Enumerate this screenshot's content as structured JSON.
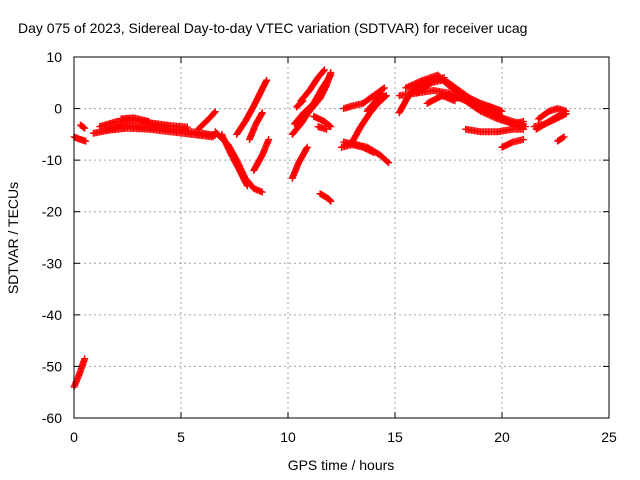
{
  "chart_data": {
    "type": "scatter",
    "title": "Day 075 of 2023, Sidereal Day-to-day VTEC variation (SDTVAR) for receiver ucag",
    "xlabel": "GPS time / hours",
    "ylabel": "SDTVAR / TECUs",
    "xlim": [
      0,
      25
    ],
    "ylim": [
      -60,
      10
    ],
    "xticks": [
      0,
      5,
      10,
      15,
      20,
      25
    ],
    "yticks": [
      -60,
      -50,
      -40,
      -30,
      -20,
      -10,
      0,
      10
    ],
    "xtick_labels": [
      "0",
      "5",
      "10",
      "15",
      "20",
      "25"
    ],
    "ytick_labels": [
      "-60",
      "-50",
      "-40",
      "-30",
      "-20",
      "-10",
      "0",
      "10"
    ],
    "grid": true,
    "marker": "+",
    "series": [
      {
        "name": "SDTVAR",
        "color": "#ff0000",
        "arcs": [
          [
            [
              0.0,
              -54
            ],
            [
              0.25,
              -51.5
            ],
            [
              0.5,
              -48.5
            ]
          ],
          [
            [
              0.0,
              -5.5
            ],
            [
              0.3,
              -6.0
            ],
            [
              0.55,
              -6.3
            ]
          ],
          [
            [
              0.3,
              -3.2
            ],
            [
              0.5,
              -3.8
            ]
          ],
          [
            [
              0.9,
              -4.8
            ],
            [
              1.6,
              -4.2
            ],
            [
              2.5,
              -3.8
            ],
            [
              3.5,
              -4.0
            ],
            [
              4.5,
              -4.5
            ],
            [
              5.5,
              -5.0
            ],
            [
              6.5,
              -5.5
            ]
          ],
          [
            [
              1.2,
              -3.5
            ],
            [
              2.0,
              -2.5
            ],
            [
              2.8,
              -2.3
            ],
            [
              3.6,
              -2.8
            ],
            [
              4.5,
              -3.3
            ],
            [
              5.3,
              -3.6
            ]
          ],
          [
            [
              1.5,
              -4.2
            ],
            [
              2.3,
              -3.2
            ],
            [
              3.0,
              -3.5
            ],
            [
              4.0,
              -3.8
            ],
            [
              5.0,
              -4.2
            ],
            [
              6.0,
              -4.8
            ],
            [
              6.6,
              -5.2
            ]
          ],
          [
            [
              2.2,
              -2.0
            ],
            [
              2.8,
              -1.8
            ],
            [
              3.5,
              -2.5
            ]
          ],
          [
            [
              5.8,
              -4.0
            ],
            [
              6.3,
              -2.0
            ],
            [
              6.6,
              -0.6
            ]
          ],
          [
            [
              6.6,
              -4.5
            ],
            [
              7.2,
              -7.0
            ],
            [
              7.6,
              -10.0
            ],
            [
              8.0,
              -13.5
            ],
            [
              8.4,
              -15.5
            ],
            [
              8.8,
              -16.2
            ]
          ],
          [
            [
              6.9,
              -5.0
            ],
            [
              7.3,
              -8.5
            ],
            [
              7.8,
              -12.5
            ],
            [
              8.1,
              -15.0
            ]
          ],
          [
            [
              7.6,
              -5.0
            ],
            [
              8.0,
              -2.5
            ],
            [
              8.4,
              0.5
            ],
            [
              8.7,
              3.0
            ],
            [
              9.0,
              5.5
            ]
          ],
          [
            [
              8.2,
              -6.0
            ],
            [
              8.5,
              -3.0
            ],
            [
              8.8,
              -0.8
            ]
          ],
          [
            [
              8.4,
              -12.0
            ],
            [
              8.8,
              -9.0
            ],
            [
              9.1,
              -6.0
            ]
          ],
          [
            [
              10.2,
              -13.5
            ],
            [
              10.5,
              -10.5
            ],
            [
              10.9,
              -7.5
            ]
          ],
          [
            [
              10.2,
              -5.0
            ],
            [
              10.6,
              -3.0
            ],
            [
              11.0,
              -0.5
            ],
            [
              11.5,
              2.0
            ],
            [
              11.8,
              4.5
            ],
            [
              12.0,
              7.0
            ]
          ],
          [
            [
              10.3,
              -3.0
            ],
            [
              10.7,
              -1.0
            ],
            [
              11.2,
              1.0
            ],
            [
              11.6,
              4.0
            ],
            [
              12.0,
              6.5
            ]
          ],
          [
            [
              10.4,
              0.3
            ],
            [
              10.7,
              1.5
            ]
          ],
          [
            [
              10.6,
              1.5
            ],
            [
              11.0,
              3.5
            ],
            [
              11.4,
              6.0
            ],
            [
              11.7,
              7.5
            ]
          ],
          [
            [
              11.2,
              -1.5
            ],
            [
              11.7,
              -2.5
            ],
            [
              12.0,
              -3.5
            ]
          ],
          [
            [
              11.4,
              -3.5
            ],
            [
              11.8,
              -4.0
            ]
          ],
          [
            [
              11.5,
              -16.5
            ],
            [
              11.9,
              -17.5
            ],
            [
              12.0,
              -18.0
            ]
          ],
          [
            [
              12.6,
              0.0
            ],
            [
              13.0,
              0.5
            ],
            [
              13.5,
              1.0
            ],
            [
              14.0,
              2.5
            ],
            [
              14.5,
              4.0
            ]
          ],
          [
            [
              12.6,
              -6.5
            ],
            [
              13.2,
              -7.0
            ],
            [
              13.7,
              -7.5
            ],
            [
              14.3,
              -9.0
            ],
            [
              14.7,
              -10.5
            ]
          ],
          [
            [
              12.5,
              -7.5
            ],
            [
              13.0,
              -7.0
            ],
            [
              13.5,
              -7.5
            ],
            [
              14.0,
              -8.5
            ]
          ],
          [
            [
              13.0,
              -6.5
            ],
            [
              13.4,
              -3.5
            ],
            [
              13.8,
              -1.0
            ],
            [
              14.2,
              1.0
            ],
            [
              14.6,
              2.5
            ]
          ],
          [
            [
              13.7,
              -0.5
            ],
            [
              14.0,
              1.0
            ],
            [
              14.4,
              3.0
            ]
          ],
          [
            [
              15.2,
              -0.8
            ],
            [
              15.5,
              1.5
            ],
            [
              15.8,
              3.5
            ],
            [
              16.2,
              4.5
            ],
            [
              16.8,
              5.5
            ],
            [
              17.3,
              6.0
            ]
          ],
          [
            [
              15.2,
              2.5
            ],
            [
              16.0,
              3.0
            ],
            [
              16.7,
              5.0
            ],
            [
              17.2,
              5.5
            ],
            [
              17.5,
              5.0
            ],
            [
              18.0,
              3.5
            ],
            [
              18.5,
              2.0
            ],
            [
              19.0,
              1.0
            ],
            [
              19.5,
              0.3
            ],
            [
              20.0,
              -0.5
            ]
          ],
          [
            [
              15.5,
              4.0
            ],
            [
              16.3,
              5.5
            ],
            [
              17.0,
              6.5
            ],
            [
              17.5,
              4.5
            ],
            [
              18.2,
              2.5
            ],
            [
              19.0,
              0.5
            ],
            [
              19.8,
              -1.5
            ],
            [
              20.5,
              -2.5
            ],
            [
              21.0,
              -3.0
            ]
          ],
          [
            [
              16.0,
              3.0
            ],
            [
              16.8,
              3.5
            ],
            [
              17.5,
              3.0
            ],
            [
              18.3,
              1.5
            ],
            [
              19.0,
              -0.5
            ],
            [
              19.8,
              -2.0
            ],
            [
              20.6,
              -3.0
            ],
            [
              21.1,
              -3.5
            ]
          ],
          [
            [
              16.5,
              1.0
            ],
            [
              17.2,
              2.5
            ],
            [
              17.8,
              1.5
            ]
          ],
          [
            [
              17.2,
              2.5
            ],
            [
              18.2,
              2.0
            ],
            [
              19.0,
              0.5
            ],
            [
              20.0,
              -1.5
            ]
          ],
          [
            [
              18.3,
              -4.0
            ],
            [
              19.0,
              -4.5
            ],
            [
              19.8,
              -4.5
            ],
            [
              20.5,
              -4.0
            ],
            [
              21.0,
              -4.0
            ]
          ],
          [
            [
              20.0,
              -7.5
            ],
            [
              20.5,
              -6.5
            ],
            [
              21.0,
              -6.0
            ]
          ],
          [
            [
              20.0,
              -2.0
            ],
            [
              20.5,
              -3.0
            ],
            [
              21.0,
              -2.5
            ]
          ],
          [
            [
              21.5,
              -3.5
            ],
            [
              22.0,
              -3.0
            ],
            [
              22.5,
              -2.0
            ],
            [
              23.0,
              -1.0
            ]
          ],
          [
            [
              21.7,
              -2.0
            ],
            [
              22.2,
              -0.5
            ],
            [
              22.6,
              0.0
            ],
            [
              23.0,
              -0.5
            ]
          ],
          [
            [
              21.6,
              -4.0
            ],
            [
              22.2,
              -2.5
            ],
            [
              22.8,
              -1.0
            ]
          ],
          [
            [
              22.6,
              -6.3
            ],
            [
              22.9,
              -5.5
            ]
          ]
        ]
      }
    ]
  }
}
